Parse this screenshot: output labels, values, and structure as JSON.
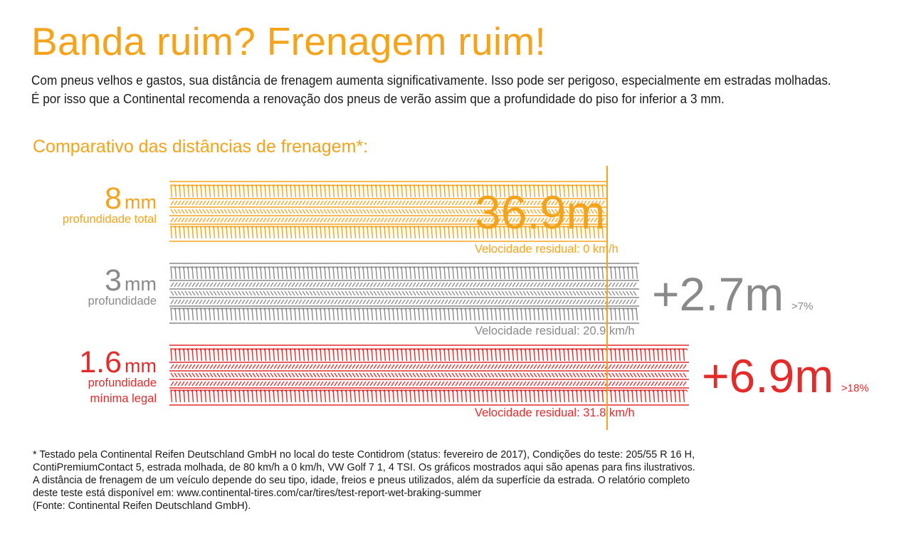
{
  "header": {
    "title": "Banda ruim? Frenagem ruim!",
    "intro_lines": [
      "Com pneus velhos e gastos, sua distância de frenagem aumenta significativamente. Isso pode ser perigoso, especialmente em estradas molhadas.",
      "É por isso que a Continental recomenda a renovação dos pneus de verão assim que a profundidade do piso for inferior a 3 mm."
    ]
  },
  "colors": {
    "orange": "#f5a31a",
    "gray": "#8a8a8a",
    "red": "#e52a2a",
    "text": "#1a1a1a"
  },
  "chart_data": {
    "type": "bar",
    "title": "Comparativo das distâncias de frenagem*:",
    "unit": "m",
    "xlim": [
      0,
      43.8
    ],
    "reference_line": 36.9,
    "series": [
      {
        "depth_value": "8",
        "depth_unit": "mm",
        "depth_label": [
          "profundidade total"
        ],
        "distance": 36.9,
        "value_label": "36.9m",
        "percent_label": "",
        "speed_label": "Velocidade residual: 0 km/h",
        "color": "#f5a31a"
      },
      {
        "depth_value": "3",
        "depth_unit": "mm",
        "depth_label": [
          "profundidade"
        ],
        "distance": 39.6,
        "value_label": "+2.7m",
        "percent_label": ">7%",
        "speed_label": "Velocidade residual: 20.9 km/h",
        "color": "#8a8a8a"
      },
      {
        "depth_value": "1.6",
        "depth_unit": "mm",
        "depth_label": [
          "profundidade",
          "mínima legal"
        ],
        "distance": 43.8,
        "value_label": "+6.9m",
        "percent_label": ">18%",
        "speed_label": "Velocidade residual: 31.8 km/h",
        "color": "#e52a2a"
      }
    ]
  },
  "footnote": {
    "lines": [
      "* Testado pela Continental Reifen Deutschland GmbH no local do teste Contidrom (status: fevereiro de 2017), Condições do teste: 205/55 R 16 H,",
      "ContiPremiumContact 5, estrada molhada, de 80 km/h a 0 km/h, VW Golf 7 1, 4 TSI. Os gráficos mostrados aqui são apenas para fins ilustrativos.",
      "A distância de frenagem de um veículo depende do seu tipo, idade, freios e pneus utilizados, além da superfície da estrada. O relatório completo",
      "deste teste  está disponível em: www.continental-tires.com/car/tires/test-report-wet-braking-summer",
      "(Fonte: Continental Reifen Deutschland GmbH)."
    ]
  }
}
